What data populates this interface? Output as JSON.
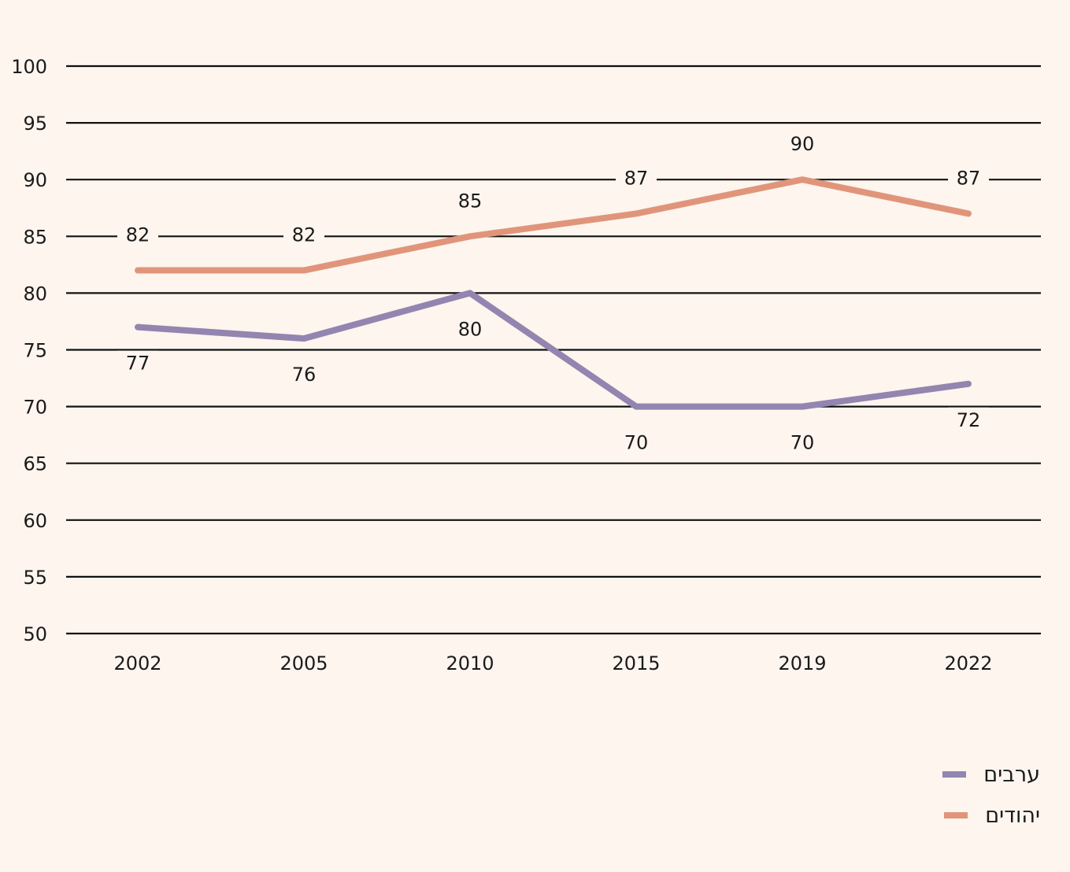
{
  "colors": {
    "background": "#fdf5ee",
    "grid": "#111111",
    "arabs": "#9385b0",
    "jews": "#e0957a"
  },
  "chart_data": {
    "type": "line",
    "categories": [
      "2002",
      "2005",
      "2010",
      "2015",
      "2019",
      "2022"
    ],
    "ylim": [
      50,
      100
    ],
    "yticks": [
      50,
      55,
      60,
      65,
      70,
      75,
      80,
      85,
      90,
      95,
      100
    ],
    "grid": true,
    "legend_position": "bottom-right",
    "series": [
      {
        "name": "ערבים",
        "color": "#9385b0",
        "values": [
          77,
          76,
          80,
          70,
          70,
          72
        ],
        "label_position": "below"
      },
      {
        "name": "יהודים",
        "color": "#e0957a",
        "values": [
          82,
          82,
          85,
          87,
          90,
          87
        ],
        "label_position": "above"
      }
    ]
  }
}
